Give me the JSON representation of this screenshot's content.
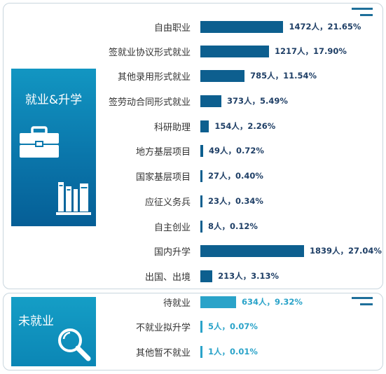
{
  "sections": {
    "top_title": "就业&升学",
    "bottom_title": "未就业"
  },
  "colors": {
    "bar_primary": "#0d5f8f",
    "bar_secondary": "#2aa3c9",
    "label_primary": "#1f3f66",
    "label_secondary": "#2aa3c9"
  },
  "icons": {
    "briefcase": "briefcase-icon",
    "books": "books-icon",
    "magnifier": "magnifier-icon"
  },
  "chart_data": {
    "type": "bar",
    "orientation": "horizontal",
    "categories": [
      "自由职业",
      "签就业协议形式就业",
      "其他录用形式就业",
      "签劳动合同形式就业",
      "科研助理",
      "地方基层项目",
      "国家基层项目",
      "应征义务兵",
      "自主创业",
      "国内升学",
      "出国、出境",
      "待就业",
      "不就业拟升学",
      "其他暂不就业"
    ],
    "values": [
      1472,
      1217,
      785,
      373,
      154,
      49,
      27,
      23,
      8,
      1839,
      213,
      634,
      5,
      1
    ],
    "percents": [
      "21.65%",
      "17.90%",
      "11.54%",
      "5.49%",
      "2.26%",
      "0.72%",
      "0.40%",
      "0.34%",
      "0.12%",
      "27.04%",
      "3.13%",
      "9.32%",
      "0.07%",
      "0.01%"
    ],
    "value_labels": [
      "1472人，21.65%",
      "1217人，17.90%",
      "785人，11.54%",
      "373人，5.49%",
      "154人，2.26%",
      "49人，0.72%",
      "27人，0.40%",
      "23人，0.34%",
      "8人，0.12%",
      "1839人，27.04%",
      "213人，3.13%",
      "634人，9.32%",
      "5人，0.07%",
      "1人，0.01%"
    ],
    "groups": [
      "就业&升学",
      "就业&升学",
      "就业&升学",
      "就业&升学",
      "就业&升学",
      "就业&升学",
      "就业&升学",
      "就业&升学",
      "就业&升学",
      "就业&升学",
      "就业&升学",
      "未就业",
      "未就业",
      "未就业"
    ],
    "xlim": [
      0,
      1839
    ],
    "title": "",
    "xlabel": "",
    "ylabel": ""
  }
}
